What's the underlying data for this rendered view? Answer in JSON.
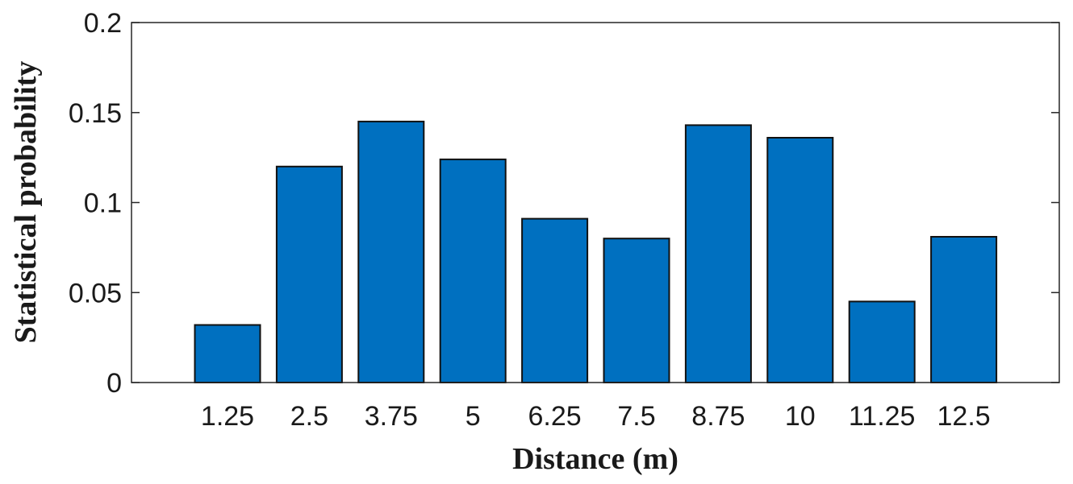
{
  "chart_data": {
    "type": "bar",
    "categories": [
      "1.25",
      "2.5",
      "3.75",
      "5",
      "6.25",
      "7.5",
      "8.75",
      "10",
      "11.25",
      "12.5"
    ],
    "values": [
      0.032,
      0.12,
      0.145,
      0.124,
      0.091,
      0.08,
      0.143,
      0.136,
      0.045,
      0.081
    ],
    "title": "",
    "xlabel": "Distance (m)",
    "ylabel": "Statistical probability",
    "ylim": [
      0,
      0.2
    ],
    "yticks": [
      "0",
      "0.05",
      "0.1",
      "0.15",
      "0.2"
    ],
    "bar_color": "#0070C0",
    "grid": false,
    "legend": "none"
  }
}
